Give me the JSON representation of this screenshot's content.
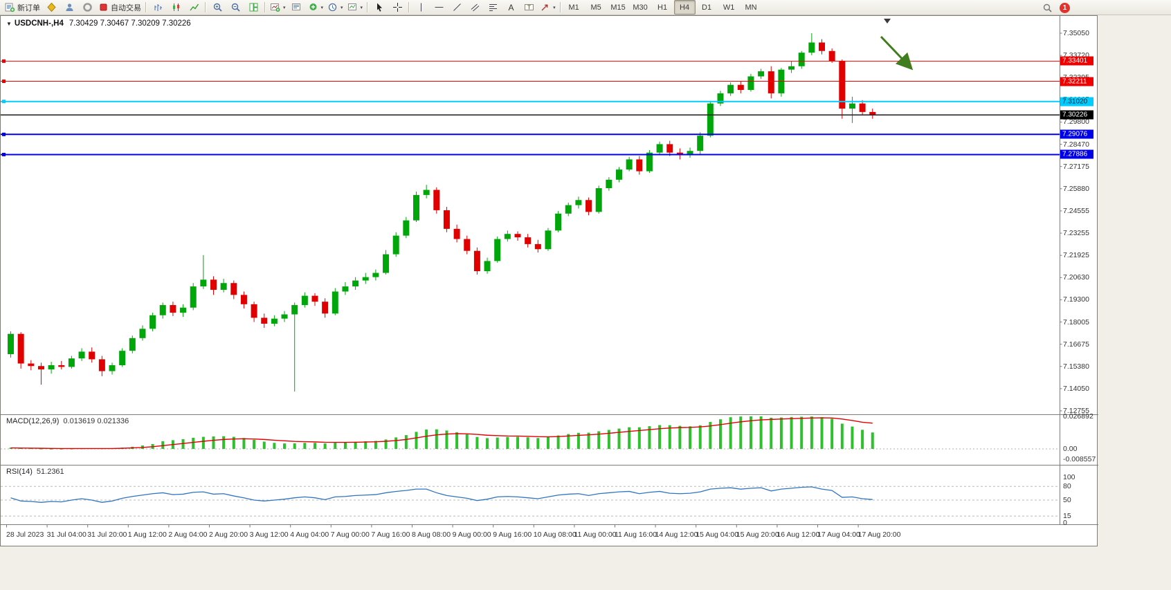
{
  "toolbar": {
    "new_order": "新订单",
    "autotrade": "自动交易",
    "timeframes": [
      "M1",
      "M5",
      "M15",
      "M30",
      "H1",
      "H4",
      "D1",
      "W1",
      "MN"
    ],
    "active_timeframe": "H4",
    "notification_count": "1"
  },
  "chart": {
    "symbol_period": "USDCNH-,H4",
    "ohlc": "7.30429 7.30467 7.30209 7.30226"
  },
  "price_axis": {
    "top_price": 7.3505,
    "bottom_price": 7.12755,
    "labels": [
      "7.35050",
      "7.33720",
      "7.32395",
      "7.31065",
      "7.29800",
      "7.28470",
      "7.27175",
      "7.25880",
      "7.24555",
      "7.23255",
      "7.21925",
      "7.20630",
      "7.19300",
      "7.18005",
      "7.16675",
      "7.15380",
      "7.14050",
      "7.12755"
    ]
  },
  "hlines": [
    {
      "price": 7.33401,
      "label": "7.33401",
      "color": "#ee0000",
      "text_color": "#ffffff",
      "width": 1
    },
    {
      "price": 7.32211,
      "label": "7.32211",
      "color": "#ee0000",
      "text_color": "#ffffff",
      "width": 1
    },
    {
      "price": 7.3102,
      "label": "7.31020",
      "color": "#00ccff",
      "text_color": "#00222e",
      "width": 2
    },
    {
      "price": 7.29076,
      "label": "7.29076",
      "color": "#0000e8",
      "text_color": "#ffffff",
      "width": 2
    },
    {
      "price": 7.27886,
      "label": "7.27886",
      "color": "#0000e8",
      "text_color": "#ffffff",
      "width": 2
    }
  ],
  "current_price": {
    "price": 7.30226,
    "label": "7.30226",
    "line_color": "#2b2b2b",
    "badge_color": "#000000",
    "text_color": "#ffffff"
  },
  "annotation_arrow": {
    "color": "#3f7d1e"
  },
  "chart_data": {
    "type": "candlestick",
    "title": "USDCNH-,H4",
    "up_color": "#00a60a",
    "down_color": "#e00000",
    "candles": [
      [
        7.161,
        7.1745,
        7.159,
        7.173
      ],
      [
        7.173,
        7.174,
        7.1525,
        7.1555
      ],
      [
        7.1555,
        7.1575,
        7.1515,
        7.154
      ],
      [
        7.154,
        7.156,
        7.143,
        7.152
      ],
      [
        7.152,
        7.1565,
        7.1495,
        7.1545
      ],
      [
        7.1545,
        7.157,
        7.152,
        7.1535
      ],
      [
        7.1535,
        7.16,
        7.1525,
        7.1585
      ],
      [
        7.1585,
        7.1645,
        7.157,
        7.1625
      ],
      [
        7.1625,
        7.165,
        7.156,
        7.158
      ],
      [
        7.158,
        7.16,
        7.148,
        7.151
      ],
      [
        7.151,
        7.156,
        7.149,
        7.1545
      ],
      [
        7.1545,
        7.1645,
        7.1535,
        7.163
      ],
      [
        7.163,
        7.172,
        7.1615,
        7.1705
      ],
      [
        7.1705,
        7.178,
        7.169,
        7.176
      ],
      [
        7.176,
        7.1855,
        7.1745,
        7.184
      ],
      [
        7.184,
        7.1915,
        7.182,
        7.19
      ],
      [
        7.19,
        7.192,
        7.1835,
        7.1855
      ],
      [
        7.1855,
        7.1905,
        7.183,
        7.1885
      ],
      [
        7.1885,
        7.203,
        7.187,
        7.201
      ],
      [
        7.201,
        7.2195,
        7.1995,
        7.205
      ],
      [
        7.205,
        7.207,
        7.196,
        7.199
      ],
      [
        7.199,
        7.2055,
        7.1975,
        7.203
      ],
      [
        7.203,
        7.2045,
        7.1935,
        7.196
      ],
      [
        7.196,
        7.198,
        7.188,
        7.1905
      ],
      [
        7.1905,
        7.192,
        7.18,
        7.1825
      ],
      [
        7.1825,
        7.185,
        7.1765,
        7.179
      ],
      [
        7.179,
        7.184,
        7.1775,
        7.182
      ],
      [
        7.182,
        7.1865,
        7.18,
        7.1845
      ],
      [
        7.1845,
        7.1915,
        7.139,
        7.19
      ],
      [
        7.19,
        7.1975,
        7.1885,
        7.1955
      ],
      [
        7.1955,
        7.197,
        7.1895,
        7.192
      ],
      [
        7.192,
        7.194,
        7.1825,
        7.185
      ],
      [
        7.185,
        7.2,
        7.184,
        7.198
      ],
      [
        7.198,
        7.2035,
        7.196,
        7.201
      ],
      [
        7.201,
        7.2065,
        7.199,
        7.2045
      ],
      [
        7.2045,
        7.209,
        7.2025,
        7.2065
      ],
      [
        7.2065,
        7.211,
        7.2045,
        7.209
      ],
      [
        7.209,
        7.2225,
        7.208,
        7.22
      ],
      [
        7.22,
        7.233,
        7.2185,
        7.231
      ],
      [
        7.231,
        7.242,
        7.2295,
        7.24
      ],
      [
        7.24,
        7.257,
        7.239,
        7.255
      ],
      [
        7.255,
        7.261,
        7.253,
        7.258
      ],
      [
        7.258,
        7.2595,
        7.244,
        7.246
      ],
      [
        7.246,
        7.248,
        7.233,
        7.235
      ],
      [
        7.235,
        7.2375,
        7.227,
        7.229
      ],
      [
        7.229,
        7.231,
        7.22,
        7.222
      ],
      [
        7.222,
        7.224,
        7.208,
        7.21
      ],
      [
        7.21,
        7.218,
        7.2085,
        7.216
      ],
      [
        7.216,
        7.2305,
        7.215,
        7.229
      ],
      [
        7.229,
        7.234,
        7.2275,
        7.232
      ],
      [
        7.232,
        7.2335,
        7.228,
        7.23
      ],
      [
        7.23,
        7.232,
        7.224,
        7.226
      ],
      [
        7.226,
        7.2285,
        7.221,
        7.223
      ],
      [
        7.223,
        7.2355,
        7.222,
        7.234
      ],
      [
        7.234,
        7.2455,
        7.233,
        7.244
      ],
      [
        7.244,
        7.2505,
        7.2425,
        7.249
      ],
      [
        7.249,
        7.254,
        7.247,
        7.252
      ],
      [
        7.252,
        7.2535,
        7.243,
        7.245
      ],
      [
        7.245,
        7.2605,
        7.244,
        7.259
      ],
      [
        7.259,
        7.2655,
        7.2575,
        7.264
      ],
      [
        7.264,
        7.2715,
        7.2625,
        7.27
      ],
      [
        7.27,
        7.2775,
        7.269,
        7.276
      ],
      [
        7.276,
        7.278,
        7.267,
        7.269
      ],
      [
        7.269,
        7.2815,
        7.268,
        7.28
      ],
      [
        7.28,
        7.2865,
        7.279,
        7.285
      ],
      [
        7.285,
        7.287,
        7.278,
        7.28
      ],
      [
        7.28,
        7.2825,
        7.276,
        7.279
      ],
      [
        7.279,
        7.283,
        7.277,
        7.281
      ],
      [
        7.281,
        7.292,
        7.279,
        7.29
      ],
      [
        7.29,
        7.3105,
        7.289,
        7.309
      ],
      [
        7.309,
        7.3165,
        7.3075,
        7.315
      ],
      [
        7.315,
        7.3215,
        7.3135,
        7.32
      ],
      [
        7.32,
        7.322,
        7.315,
        7.317
      ],
      [
        7.317,
        7.3265,
        7.316,
        7.325
      ],
      [
        7.325,
        7.3295,
        7.3235,
        7.328
      ],
      [
        7.328,
        7.331,
        7.312,
        7.315
      ],
      [
        7.315,
        7.33,
        7.313,
        7.329
      ],
      [
        7.329,
        7.334,
        7.327,
        7.331
      ],
      [
        7.331,
        7.34,
        7.3295,
        7.339
      ],
      [
        7.339,
        7.3505,
        7.3375,
        7.345
      ],
      [
        7.345,
        7.347,
        7.338,
        7.34
      ],
      [
        7.34,
        7.3415,
        7.333,
        7.334
      ],
      [
        7.334,
        7.335,
        7.3,
        7.306
      ],
      [
        7.306,
        7.313,
        7.2975,
        7.309
      ],
      [
        7.309,
        7.311,
        7.302,
        7.304
      ],
      [
        7.304,
        7.306,
        7.3,
        7.3023
      ]
    ],
    "time_labels": [
      "28 Jul 2023",
      "31 Jul 04:00",
      "31 Jul 20:00",
      "1 Aug 12:00",
      "2 Aug 04:00",
      "2 Aug 20:00",
      "3 Aug 12:00",
      "4 Aug 04:00",
      "7 Aug 00:00",
      "7 Aug 16:00",
      "8 Aug 08:00",
      "9 Aug 00:00",
      "9 Aug 16:00",
      "10 Aug 08:00",
      "11 Aug 00:00",
      "11 Aug 16:00",
      "14 Aug 12:00",
      "15 Aug 04:00",
      "15 Aug 20:00",
      "16 Aug 12:00",
      "17 Aug 04:00",
      "17 Aug 20:00"
    ],
    "macd": {
      "title": "MACD(12,26,9)",
      "values_text": "0.013619 0.021336",
      "bar_color": "#2fbf2f",
      "signal_color": "#e00000",
      "axis_labels": [
        "0.026892",
        "0.00",
        "-0.008557"
      ],
      "axis_values": [
        0.026892,
        0,
        -0.008557
      ],
      "histogram": [
        0.001,
        0.0008,
        0.0005,
        0.0002,
        0.0001,
        0.0001,
        0.0002,
        0.0004,
        0.0005,
        0.0004,
        0.0005,
        0.001,
        0.0018,
        0.0028,
        0.004,
        0.0063,
        0.0072,
        0.008,
        0.0092,
        0.01,
        0.0103,
        0.0105,
        0.01,
        0.009,
        0.0075,
        0.006,
        0.005,
        0.0045,
        0.0046,
        0.005,
        0.005,
        0.0045,
        0.005,
        0.0055,
        0.006,
        0.0063,
        0.0066,
        0.0078,
        0.0095,
        0.0114,
        0.0141,
        0.016,
        0.0162,
        0.0152,
        0.0137,
        0.012,
        0.0099,
        0.0089,
        0.0094,
        0.0099,
        0.01,
        0.0096,
        0.009,
        0.0097,
        0.0111,
        0.0123,
        0.0133,
        0.0134,
        0.0146,
        0.0157,
        0.0168,
        0.0179,
        0.0179,
        0.0188,
        0.0197,
        0.0196,
        0.0191,
        0.0187,
        0.0195,
        0.0223,
        0.0245,
        0.0262,
        0.0268,
        0.0269,
        0.0269,
        0.0258,
        0.026,
        0.0263,
        0.0266,
        0.0268,
        0.0262,
        0.025,
        0.0209,
        0.0185,
        0.0158,
        0.0136
      ],
      "signal": [
        0.0008,
        0.0007,
        0.0006,
        0.0005,
        0.0004,
        0.0003,
        0.0003,
        0.0003,
        0.0003,
        0.0003,
        0.0003,
        0.0005,
        0.0008,
        0.0012,
        0.0018,
        0.0027,
        0.0036,
        0.0045,
        0.0054,
        0.0063,
        0.0071,
        0.0078,
        0.0082,
        0.0084,
        0.0082,
        0.0078,
        0.0072,
        0.0067,
        0.0062,
        0.006,
        0.0058,
        0.0055,
        0.0054,
        0.0054,
        0.0055,
        0.0057,
        0.0059,
        0.0063,
        0.0069,
        0.0078,
        0.0091,
        0.0105,
        0.0116,
        0.0123,
        0.0126,
        0.0125,
        0.012,
        0.0113,
        0.011,
        0.0107,
        0.0106,
        0.0104,
        0.0101,
        0.01,
        0.0102,
        0.0107,
        0.0112,
        0.0116,
        0.0122,
        0.0129,
        0.0137,
        0.0145,
        0.0152,
        0.0159,
        0.0167,
        0.0173,
        0.0176,
        0.0178,
        0.0182,
        0.019,
        0.0201,
        0.0213,
        0.0224,
        0.0233,
        0.024,
        0.0244,
        0.0247,
        0.025,
        0.0253,
        0.0256,
        0.0257,
        0.0256,
        0.0247,
        0.0235,
        0.0221,
        0.0213
      ]
    },
    "rsi": {
      "title": "RSI(14)",
      "value_text": "51.2361",
      "line_color": "#2f74c0",
      "levels": [
        80,
        50,
        15
      ],
      "axis_labels": [
        "100",
        "80",
        "50",
        "15",
        "0"
      ],
      "axis_values": [
        100,
        80,
        50,
        15,
        0
      ],
      "values": [
        55,
        48,
        47,
        45,
        47,
        46,
        50,
        53,
        50,
        45,
        48,
        54,
        58,
        61,
        64,
        66,
        62,
        63,
        67,
        68,
        63,
        64,
        59,
        55,
        50,
        48,
        50,
        52,
        55,
        57,
        55,
        51,
        57,
        58,
        60,
        61,
        62,
        66,
        69,
        71,
        74,
        74,
        66,
        60,
        57,
        54,
        49,
        52,
        57,
        58,
        57,
        55,
        53,
        57,
        61,
        63,
        64,
        60,
        64,
        66,
        68,
        69,
        64,
        67,
        69,
        65,
        64,
        65,
        68,
        74,
        76,
        77,
        74,
        76,
        77,
        70,
        74,
        76,
        78,
        79,
        74,
        71,
        56,
        57,
        53,
        51.24
      ]
    }
  }
}
